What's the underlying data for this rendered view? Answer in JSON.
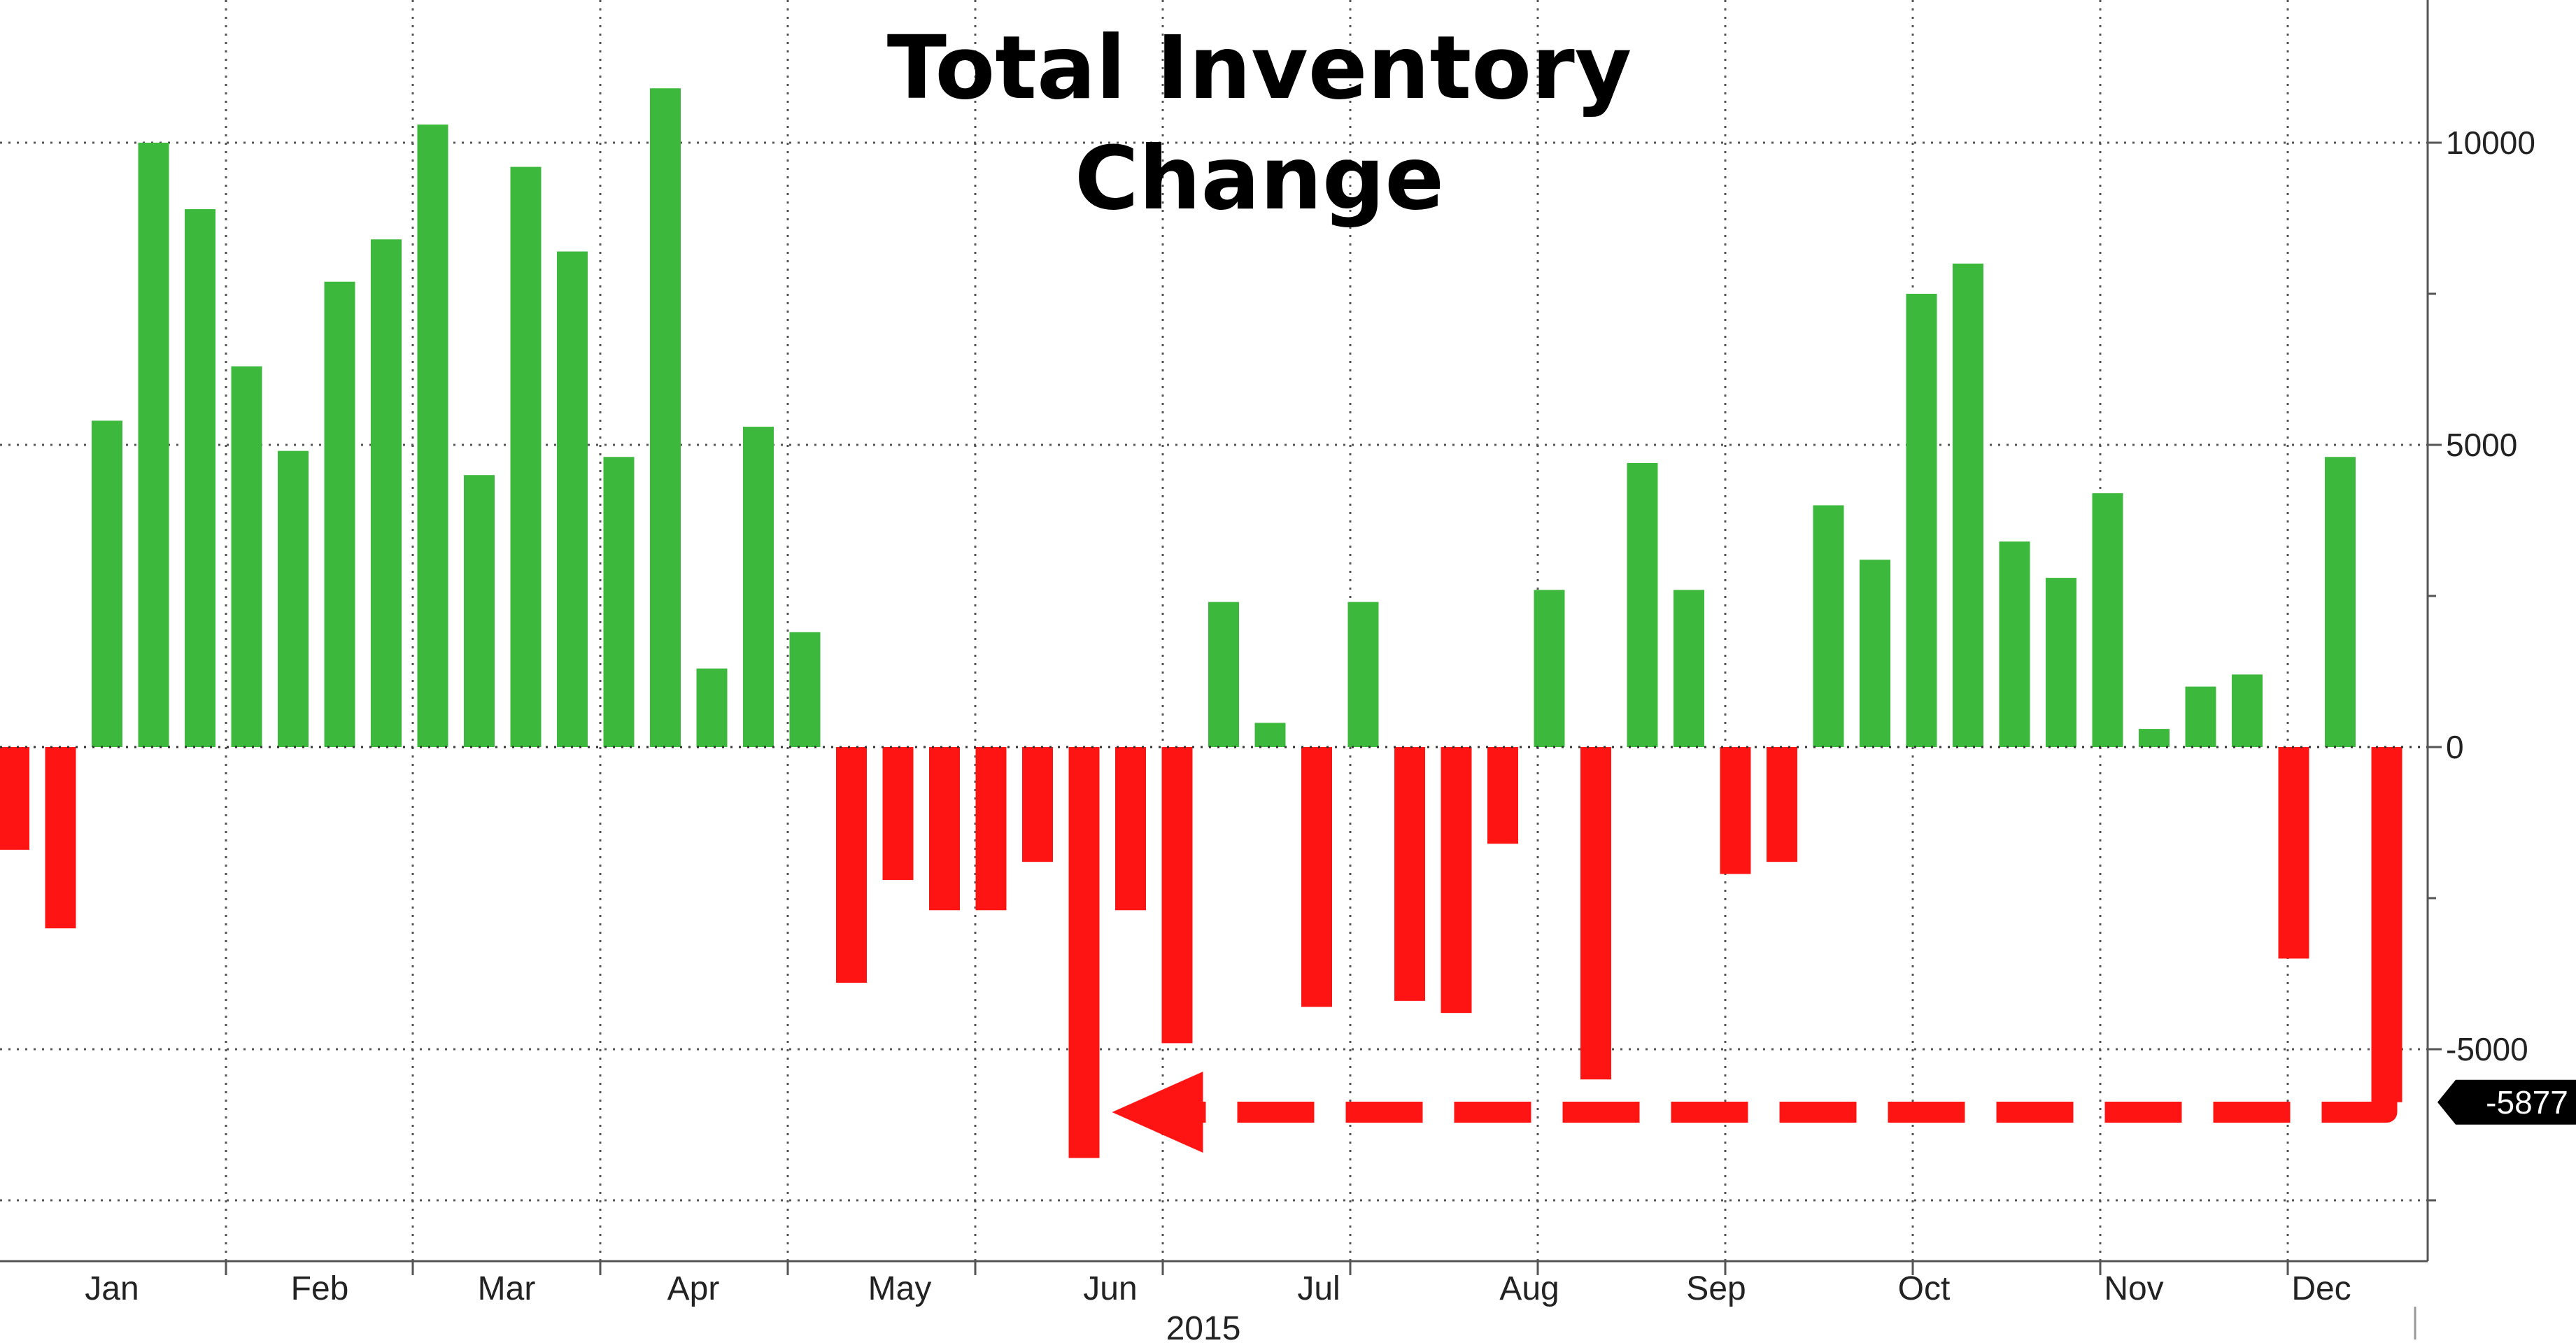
{
  "chart_data": {
    "type": "bar",
    "title": [
      "Total Inventory",
      "Change"
    ],
    "year_label": "2015",
    "months": [
      "Jan",
      "Feb",
      "Mar",
      "Apr",
      "May",
      "Jun",
      "Jul",
      "Aug",
      "Sep",
      "Oct",
      "Nov",
      "Dec"
    ],
    "y_ticks": [
      10000,
      5000,
      0,
      -5000
    ],
    "y_tick_labels": [
      "10000",
      "5000",
      "0",
      "-5000"
    ],
    "ylim": [
      -8500,
      12400
    ],
    "week_range": [
      -0.5,
      52.4
    ],
    "values": [
      -1700,
      -3000,
      5400,
      10000,
      8900,
      6300,
      4900,
      7700,
      8400,
      10300,
      4500,
      9600,
      8200,
      4800,
      10900,
      1300,
      5300,
      1900,
      -3900,
      -2200,
      -2700,
      -2700,
      -1900,
      -6800,
      -2700,
      -4900,
      2400,
      400,
      -4300,
      2400,
      -4200,
      -4400,
      -1600,
      2600,
      -5500,
      4700,
      2600,
      -2100,
      -1900,
      4000,
      3100,
      7500,
      8000,
      3400,
      2800,
      4200,
      300,
      1000,
      1200,
      -3500,
      4800,
      -5877
    ],
    "last_value_label": "-5877",
    "positive_color": "#3cb93c",
    "negative_color": "#ff1414",
    "grid": true,
    "annotation": "dashed red arrow from last bar back to June low"
  }
}
